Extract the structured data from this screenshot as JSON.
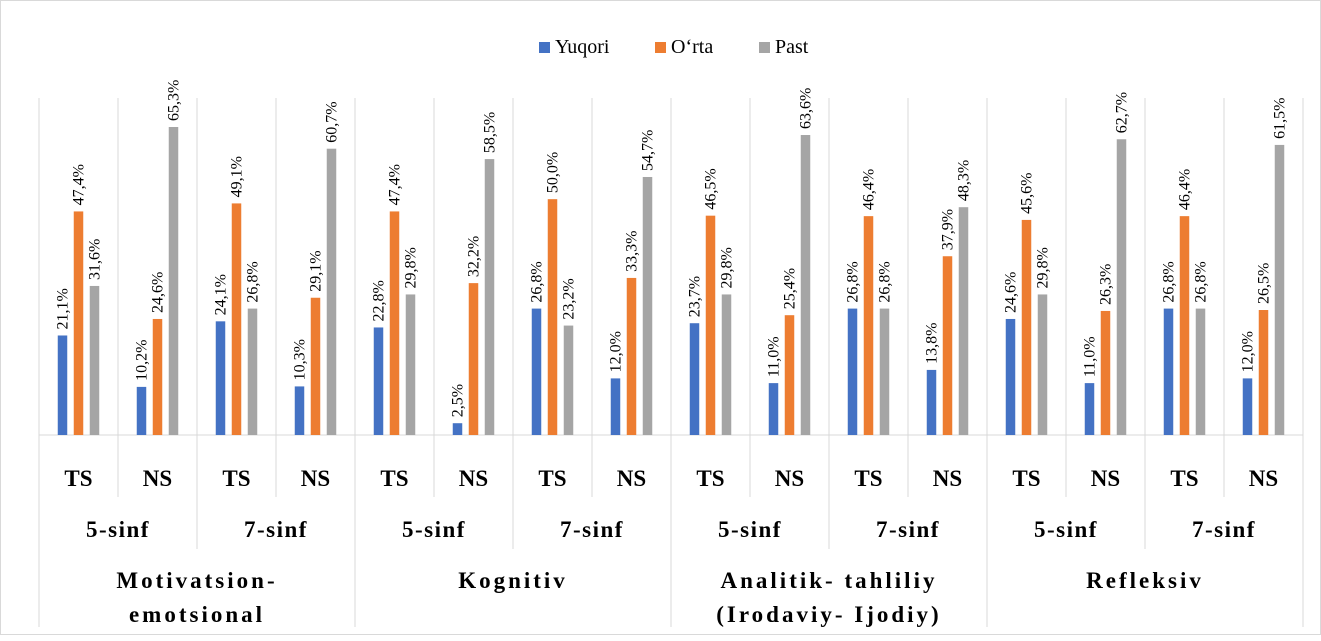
{
  "chart_data": {
    "type": "bar",
    "legend_position": "top-center",
    "grid": false,
    "ylim": [
      0,
      70
    ],
    "colors": [
      "#4472c4",
      "#ed7d31",
      "#a5a5a5"
    ],
    "legend": [
      "Yuqori",
      "O‘rta",
      "Past"
    ],
    "groups": [
      {
        "name_lines": [
          "Motivatsion-",
          "emotsional"
        ],
        "grades": [
          "5-sinf",
          "7-sinf"
        ]
      },
      {
        "name_lines": [
          "Kognitiv"
        ],
        "grades": [
          "5-sinf",
          "7-sinf"
        ]
      },
      {
        "name_lines": [
          "Analitik- tahliliy",
          "(Irodaviy- Ijodiy)"
        ],
        "grades": [
          "5-sinf",
          "7-sinf"
        ]
      },
      {
        "name_lines": [
          "Refleksiv"
        ],
        "grades": [
          "5-sinf",
          "7-sinf"
        ]
      }
    ],
    "categories": [
      "TS",
      "NS",
      "TS",
      "NS",
      "TS",
      "NS",
      "TS",
      "NS",
      "TS",
      "NS",
      "TS",
      "NS",
      "TS",
      "NS",
      "TS",
      "NS"
    ],
    "series": [
      {
        "name": "Yuqori",
        "values": [
          21.1,
          10.2,
          24.1,
          10.3,
          22.8,
          2.5,
          26.8,
          12.0,
          23.7,
          11.0,
          26.8,
          13.8,
          24.6,
          11.0,
          26.8,
          12.0
        ]
      },
      {
        "name": "O‘rta",
        "values": [
          47.4,
          24.6,
          49.1,
          29.1,
          47.4,
          32.2,
          50.0,
          33.3,
          46.5,
          25.4,
          46.4,
          37.9,
          45.6,
          26.3,
          46.4,
          26.5
        ]
      },
      {
        "name": "Past",
        "values": [
          31.6,
          65.3,
          26.8,
          60.7,
          29.8,
          58.5,
          23.2,
          54.7,
          29.8,
          63.6,
          26.8,
          48.3,
          29.8,
          62.7,
          26.8,
          61.5
        ]
      }
    ],
    "data_labels": [
      [
        "21,1%",
        "10,2%",
        "24,1%",
        "10,3%",
        "22,8%",
        "2,5%",
        "26,8%",
        "12,0%",
        "23,7%",
        "11,0%",
        "26,8%",
        "13,8%",
        "24,6%",
        "11,0%",
        "26,8%",
        "12,0%"
      ],
      [
        "47,4%",
        "24,6%",
        "49,1%",
        "29,1%",
        "47,4%",
        "32,2%",
        "50,0%",
        "33,3%",
        "46,5%",
        "25,4%",
        "46,4%",
        "37,9%",
        "45,6%",
        "26,3%",
        "46,4%",
        "26,5%"
      ],
      [
        "31,6%",
        "65,3%",
        "26,8%",
        "60,7%",
        "29,8%",
        "58,5%",
        "23,2%",
        "54,7%",
        "29,8%",
        "63,6%",
        "26,8%",
        "48,3%",
        "29,8%",
        "62,7%",
        "26,8%",
        "61,5%"
      ]
    ]
  }
}
